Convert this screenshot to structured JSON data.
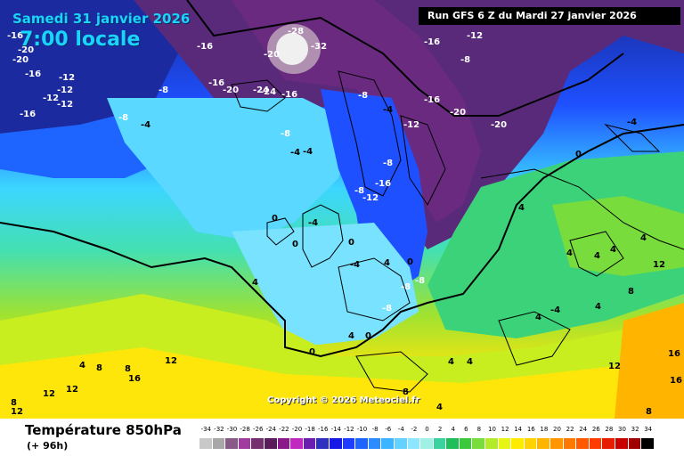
{
  "header": {
    "date": "Samedi 31 janvier 2026",
    "local_time": "7:00 locale",
    "run": "Run GFS 6 Z du Mardi 27 janvier 2026"
  },
  "footer": {
    "variable": "Température 850hPa",
    "lead": "(+ 96h)",
    "copyright": "Copyright © 2026 Meteociel.fr"
  },
  "legend": {
    "ticks": [
      "-34",
      "-32",
      "-30",
      "-28",
      "-26",
      "-24",
      "-22",
      "-20",
      "-18",
      "-16",
      "-14",
      "-12",
      "-10",
      "-8",
      "-6",
      "-4",
      "-2",
      "0",
      "2",
      "4",
      "6",
      "8",
      "10",
      "12",
      "14",
      "16",
      "18",
      "20",
      "22",
      "24",
      "26",
      "28",
      "30",
      "32",
      "34"
    ],
    "colors": [
      "#c8c8c8",
      "#a8a8a8",
      "#885a88",
      "#a03ca0",
      "#74306e",
      "#5a1c5a",
      "#8a1a8a",
      "#c028c0",
      "#6a1fb0",
      "#2f2fc0",
      "#1818e6",
      "#1e3cff",
      "#1e64ff",
      "#2a8cff",
      "#3cb4ff",
      "#64d2ff",
      "#8ce6ff",
      "#a0f0e6",
      "#3cd2a0",
      "#1ebe5a",
      "#3cc83c",
      "#78dc3c",
      "#b4eb28",
      "#e6f514",
      "#ffeb00",
      "#ffd200",
      "#ffb400",
      "#ff9600",
      "#ff7800",
      "#ff5a00",
      "#ff3c00",
      "#e61e00",
      "#c80000",
      "#a00000",
      "#000000"
    ]
  },
  "isotherm_labels": [
    "-16",
    "-20",
    "-16",
    "-12",
    "-12",
    "-16",
    "-20",
    "-24",
    "-28",
    "-32",
    "-16",
    "-16",
    "-20",
    "-24",
    "-20",
    "-16",
    "-12",
    "-8",
    "-16",
    "-20",
    "-20",
    "-16",
    "-12",
    "-12",
    "-8",
    "-4",
    "-8",
    "-4",
    "-8",
    "-12",
    "-4",
    "-8",
    "-4",
    "-8",
    "-16",
    "-12",
    "-8",
    "-4",
    "0",
    "0",
    "0",
    "-4",
    "4",
    "4",
    "4",
    "4",
    "4",
    "4",
    "0",
    "0",
    "0",
    "-8",
    "-8",
    "-8",
    "-4",
    "4",
    "4",
    "8",
    "8",
    "12",
    "8",
    "12",
    "12",
    "12",
    "16",
    "16",
    "12",
    "16",
    "8",
    "4",
    "8",
    "4",
    "-4",
    "0",
    "4",
    "4",
    "4",
    "4",
    "8",
    "12"
  ]
}
